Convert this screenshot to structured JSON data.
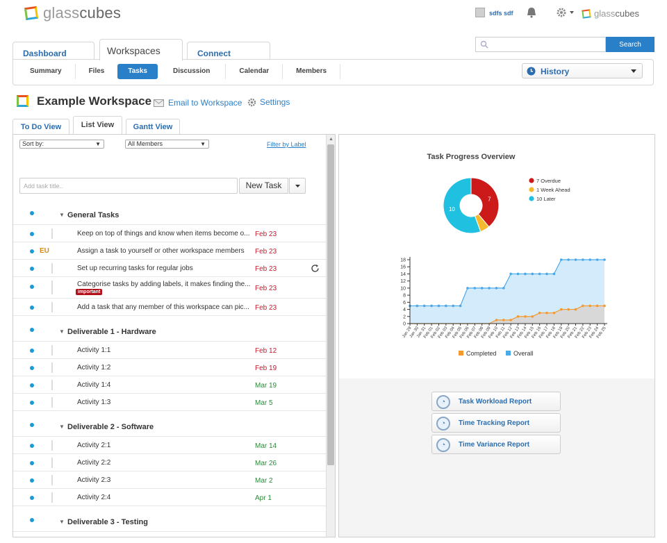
{
  "header": {
    "logo_left_a": "glass",
    "logo_left_b": "cubes",
    "user_name": "sdfs sdf",
    "logo_right_a": "glass",
    "logo_right_b": "cubes"
  },
  "search": {
    "button": "Search",
    "placeholder": ""
  },
  "main_tabs": [
    {
      "label": "Dashboard"
    },
    {
      "label": "Workspaces"
    },
    {
      "label": "Connect"
    }
  ],
  "sub_nav": [
    {
      "label": "Summary"
    },
    {
      "label": "Files"
    },
    {
      "label": "Tasks"
    },
    {
      "label": "Discussion"
    },
    {
      "label": "Calendar"
    },
    {
      "label": "Members"
    }
  ],
  "history": {
    "label": "History"
  },
  "workspace": {
    "title": "Example Workspace",
    "email_link": "Email to Workspace",
    "settings_link": "Settings"
  },
  "view_tabs": [
    {
      "label": "To Do View"
    },
    {
      "label": "List View"
    },
    {
      "label": "Gantt View"
    }
  ],
  "filters": {
    "sort": "Sort by:",
    "members": "All Members",
    "filter_label": "Filter by Label"
  },
  "new_task": {
    "placeholder": "Add task title..",
    "button": "New Task"
  },
  "groups": [
    {
      "name": "General Tasks",
      "tasks": [
        {
          "title": "Keep on top of things and know when items become o...",
          "date": "Feb 23",
          "date_color": "red",
          "assignee": ""
        },
        {
          "title": "Assign a task to yourself or other workspace members",
          "date": "Feb 23",
          "date_color": "red",
          "assignee": "EU"
        },
        {
          "title": "Set up recurring tasks for regular jobs",
          "date": "Feb 23",
          "date_color": "red",
          "assignee": ""
        },
        {
          "title": "Categorise tasks by adding labels, it makes finding the...",
          "date": "Feb 23",
          "date_color": "red",
          "assignee": "",
          "label": "important"
        },
        {
          "title": "Add a task that any member of this workspace can pic...",
          "date": "Feb 23",
          "date_color": "red",
          "assignee": ""
        }
      ]
    },
    {
      "name": "Deliverable 1 - Hardware",
      "tasks": [
        {
          "title": "Activity 1:1",
          "date": "Feb 12",
          "date_color": "red"
        },
        {
          "title": "Activity 1:2",
          "date": "Feb 19",
          "date_color": "red"
        },
        {
          "title": "Activity 1:4",
          "date": "Mar 19",
          "date_color": "green"
        },
        {
          "title": "Activity 1:3",
          "date": "Mar 5",
          "date_color": "green"
        }
      ]
    },
    {
      "name": "Deliverable 2 - Software",
      "tasks": [
        {
          "title": "Activity 2:1",
          "date": "Mar 14",
          "date_color": "green"
        },
        {
          "title": "Activity 2:2",
          "date": "Mar 26",
          "date_color": "green"
        },
        {
          "title": "Activity 2:3",
          "date": "Mar 2",
          "date_color": "green"
        },
        {
          "title": "Activity 2:4",
          "date": "Apr 1",
          "date_color": "green"
        }
      ]
    },
    {
      "name": "Deliverable 3 - Testing",
      "tasks": []
    }
  ],
  "reports": [
    {
      "label": "Task Workload Report"
    },
    {
      "label": "Time Tracking Report"
    },
    {
      "label": "Time Variance Report"
    }
  ],
  "colors": {
    "accent": "#2a7fc9",
    "overdue": "#cc1a1a",
    "week_ahead": "#f5b82e",
    "later": "#1fc0e0",
    "completed": "#f49a2e",
    "overall": "#4aa9ea"
  },
  "chart_data": [
    {
      "type": "pie",
      "title": "Task Progress Overview",
      "labels": [
        "7 Overdue",
        "1 Week Ahead",
        "10 Later"
      ],
      "values": [
        7,
        1,
        10
      ],
      "slice_labels": [
        "7",
        "",
        "10"
      ],
      "legend": "right"
    },
    {
      "type": "line",
      "title": "",
      "x": [
        "Jan 29",
        "Jan 30",
        "Jan 31",
        "Feb 01",
        "Feb 02",
        "Feb 03",
        "Feb 04",
        "Feb 05",
        "Feb 06",
        "Feb 07",
        "Feb 08",
        "Feb 09",
        "Feb 10",
        "Feb 11",
        "Feb 12",
        "Feb 13",
        "Feb 14",
        "Feb 15",
        "Feb 16",
        "Feb 17",
        "Feb 18",
        "Feb 19",
        "Feb 20",
        "Feb 21",
        "Feb 22",
        "Feb 23",
        "Feb 24",
        "Feb 25"
      ],
      "series": [
        {
          "name": "Completed",
          "values": [
            0,
            0,
            0,
            0,
            0,
            0,
            0,
            0,
            0,
            0,
            0,
            0,
            1,
            1,
            1,
            2,
            2,
            2,
            3,
            3,
            3,
            4,
            4,
            4,
            5,
            5,
            5,
            5
          ]
        },
        {
          "name": "Overall",
          "values": [
            5,
            5,
            5,
            5,
            5,
            5,
            5,
            5,
            10,
            10,
            10,
            10,
            10,
            10,
            14,
            14,
            14,
            14,
            14,
            14,
            14,
            18,
            18,
            18,
            18,
            18,
            18,
            18
          ]
        }
      ],
      "ylim": [
        0,
        18
      ],
      "yticks": [
        "0",
        "2",
        "4",
        "6",
        "8",
        "10",
        "12",
        "14",
        "16",
        "18"
      ],
      "legend": "bottom"
    }
  ]
}
